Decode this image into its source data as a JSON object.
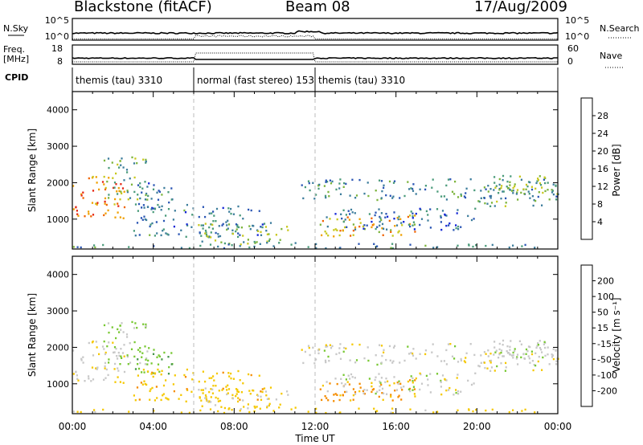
{
  "header": {
    "title": "Blackstone (fitACF)",
    "beam": "Beam 08",
    "date": "17/Aug/2009"
  },
  "top_panels": {
    "nsky_label": "N.Sky",
    "nsky_ticks": [
      "10^5",
      "10^0"
    ],
    "nsearch_label": "N.Search",
    "freq_label": "Freq.",
    "freq_unit": "[MHz]",
    "freq_ticks": [
      "18",
      "8"
    ],
    "nave_label": "Nave",
    "nave_ticks": [
      "60",
      "0"
    ],
    "cpid_label": "CPID",
    "cpid_segments": [
      {
        "label": "themis (tau) 3310",
        "start_h": 0,
        "end_h": 6
      },
      {
        "label": "normal (fast stereo) 153",
        "start_h": 6,
        "end_h": 12
      },
      {
        "label": "themis (tau) 3310",
        "start_h": 12,
        "end_h": 24
      }
    ]
  },
  "chart_data": [
    {
      "type": "heatmap",
      "name": "power",
      "ylabel": "Slant Range [km]",
      "ylim": [
        180,
        4500
      ],
      "yticks": [
        1000,
        2000,
        3000,
        4000
      ],
      "xlim_hours": [
        0,
        24
      ],
      "colorbar": {
        "label": "Power [dB]",
        "ticks": [
          "28",
          "24",
          "20",
          "16",
          "12",
          "8",
          "4"
        ],
        "range": [
          0,
          32
        ],
        "colors": [
          "#1426d6",
          "#2a55b4",
          "#3d7d9c",
          "#4a9b7a",
          "#7cb43c",
          "#c8c81e",
          "#f0a000",
          "#f06400",
          "#e62814"
        ]
      }
    },
    {
      "type": "heatmap",
      "name": "velocity",
      "ylabel": "Slant Range [km]",
      "ylim": [
        180,
        4500
      ],
      "yticks": [
        1000,
        2000,
        3000,
        4000
      ],
      "xlim_hours": [
        0,
        24
      ],
      "xticks": [
        "00:00",
        "04:00",
        "08:00",
        "12:00",
        "16:00",
        "20:00",
        "00:00"
      ],
      "xlabel": "Time UT",
      "colorbar": {
        "label": "Velocity [m s⁻¹]",
        "ticks": [
          "200",
          "100",
          "50",
          "15",
          "-15",
          "-50",
          "-100",
          "-200"
        ],
        "colors": [
          "#e60000",
          "#f04600",
          "#f58c00",
          "#f5c800",
          "#c8c8c8",
          "#78c832",
          "#46964b",
          "#3c78a0",
          "#2d3cc8"
        ]
      }
    }
  ],
  "echo_regions": [
    {
      "t": [
        0.0,
        2.6
      ],
      "r": [
        1000,
        2200
      ],
      "p": 26,
      "v": -5
    },
    {
      "t": [
        1.5,
        3.8
      ],
      "r": [
        1500,
        2700
      ],
      "p": 13,
      "v": 20
    },
    {
      "t": [
        3.0,
        5.0
      ],
      "r": [
        1200,
        2000
      ],
      "p": 9,
      "v": 40
    },
    {
      "t": [
        3.0,
        9.5
      ],
      "r": [
        500,
        1400
      ],
      "p": 9,
      "v": -35
    },
    {
      "t": [
        6.0,
        11.0
      ],
      "r": [
        300,
        900
      ],
      "p": 14,
      "v": -25
    },
    {
      "t": [
        11.3,
        24.0
      ],
      "r": [
        1500,
        2100
      ],
      "p": 11,
      "v": 0
    },
    {
      "t": [
        12.0,
        17.0
      ],
      "r": [
        500,
        1100
      ],
      "p": 22,
      "v": -60
    },
    {
      "t": [
        12.0,
        20.0
      ],
      "r": [
        700,
        1300
      ],
      "p": 7,
      "v": 0
    },
    {
      "t": [
        20.0,
        24.0
      ],
      "r": [
        1350,
        2200
      ],
      "p": 15,
      "v": 0
    },
    {
      "t": [
        0.0,
        24.0
      ],
      "r": [
        200,
        320
      ],
      "p": 10,
      "v": -30
    }
  ]
}
